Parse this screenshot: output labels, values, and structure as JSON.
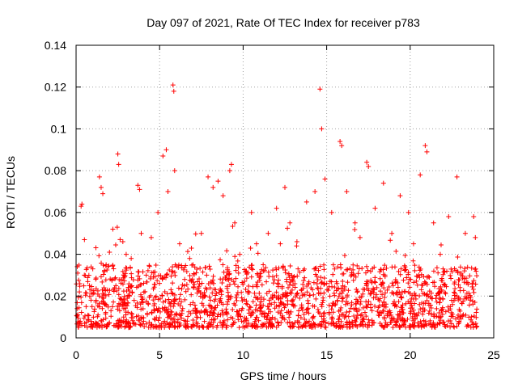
{
  "chart_data": {
    "type": "scatter",
    "title": "Day 097 of 2021, Rate Of TEC Index for receiver p783",
    "xlabel": "GPS time / hours",
    "ylabel": "ROTI / TECUs",
    "xlim": [
      0,
      25
    ],
    "ylim": [
      0,
      0.14
    ],
    "x_ticks": [
      0,
      5,
      10,
      15,
      20,
      25
    ],
    "x_tick_labels": [
      "0",
      "5",
      "10",
      "15",
      "20",
      "25"
    ],
    "y_ticks": [
      0,
      0.02,
      0.04,
      0.06,
      0.08,
      0.1,
      0.12,
      0.14
    ],
    "y_tick_labels": [
      "0",
      "0.02",
      "0.04",
      "0.06",
      "0.08",
      "0.1",
      "0.12",
      "0.14"
    ],
    "grid": true,
    "marker": "+",
    "marker_color": "#ff0000",
    "series": [
      {
        "name": "ROTI",
        "points": [
          [
            0.1,
            0.031
          ],
          [
            0.2,
            0.022
          ],
          [
            0.3,
            0.063
          ],
          [
            0.35,
            0.064
          ],
          [
            0.5,
            0.047
          ],
          [
            0.6,
            0.015
          ],
          [
            0.8,
            0.025
          ],
          [
            1.0,
            0.033
          ],
          [
            1.2,
            0.018
          ],
          [
            1.4,
            0.077
          ],
          [
            1.5,
            0.072
          ],
          [
            1.6,
            0.069
          ],
          [
            1.8,
            0.035
          ],
          [
            2.0,
            0.041
          ],
          [
            2.2,
            0.052
          ],
          [
            2.5,
            0.088
          ],
          [
            2.55,
            0.083
          ],
          [
            2.8,
            0.046
          ],
          [
            3.0,
            0.04
          ],
          [
            3.3,
            0.038
          ],
          [
            3.7,
            0.073
          ],
          [
            3.8,
            0.071
          ],
          [
            3.9,
            0.05
          ],
          [
            4.2,
            0.03
          ],
          [
            4.5,
            0.048
          ],
          [
            4.9,
            0.06
          ],
          [
            5.2,
            0.087
          ],
          [
            5.4,
            0.09
          ],
          [
            5.5,
            0.07
          ],
          [
            5.8,
            0.121
          ],
          [
            5.85,
            0.118
          ],
          [
            5.9,
            0.08
          ],
          [
            6.2,
            0.045
          ],
          [
            6.5,
            0.028
          ],
          [
            7.0,
            0.035
          ],
          [
            7.5,
            0.05
          ],
          [
            7.9,
            0.077
          ],
          [
            8.2,
            0.072
          ],
          [
            8.5,
            0.075
          ],
          [
            8.8,
            0.068
          ],
          [
            9.2,
            0.08
          ],
          [
            9.3,
            0.083
          ],
          [
            9.5,
            0.055
          ],
          [
            9.8,
            0.04
          ],
          [
            10.2,
            0.032
          ],
          [
            10.5,
            0.06
          ],
          [
            10.8,
            0.045
          ],
          [
            11.2,
            0.035
          ],
          [
            11.5,
            0.05
          ],
          [
            12.0,
            0.062
          ],
          [
            12.5,
            0.072
          ],
          [
            12.8,
            0.055
          ],
          [
            13.2,
            0.044
          ],
          [
            13.8,
            0.065
          ],
          [
            14.3,
            0.07
          ],
          [
            14.6,
            0.119
          ],
          [
            14.7,
            0.1
          ],
          [
            14.9,
            0.076
          ],
          [
            15.3,
            0.06
          ],
          [
            15.8,
            0.094
          ],
          [
            15.9,
            0.092
          ],
          [
            16.2,
            0.07
          ],
          [
            16.7,
            0.055
          ],
          [
            17.0,
            0.048
          ],
          [
            17.4,
            0.084
          ],
          [
            17.5,
            0.082
          ],
          [
            17.9,
            0.062
          ],
          [
            18.4,
            0.074
          ],
          [
            18.9,
            0.05
          ],
          [
            19.4,
            0.068
          ],
          [
            19.9,
            0.06
          ],
          [
            20.2,
            0.045
          ],
          [
            20.6,
            0.078
          ],
          [
            20.9,
            0.092
          ],
          [
            21.0,
            0.089
          ],
          [
            21.4,
            0.055
          ],
          [
            21.8,
            0.04
          ],
          [
            22.3,
            0.058
          ],
          [
            22.8,
            0.077
          ],
          [
            23.3,
            0.05
          ],
          [
            23.8,
            0.058
          ],
          [
            23.9,
            0.048
          ]
        ]
      }
    ],
    "approx_noise_band": [
      0.005,
      0.035
    ]
  }
}
